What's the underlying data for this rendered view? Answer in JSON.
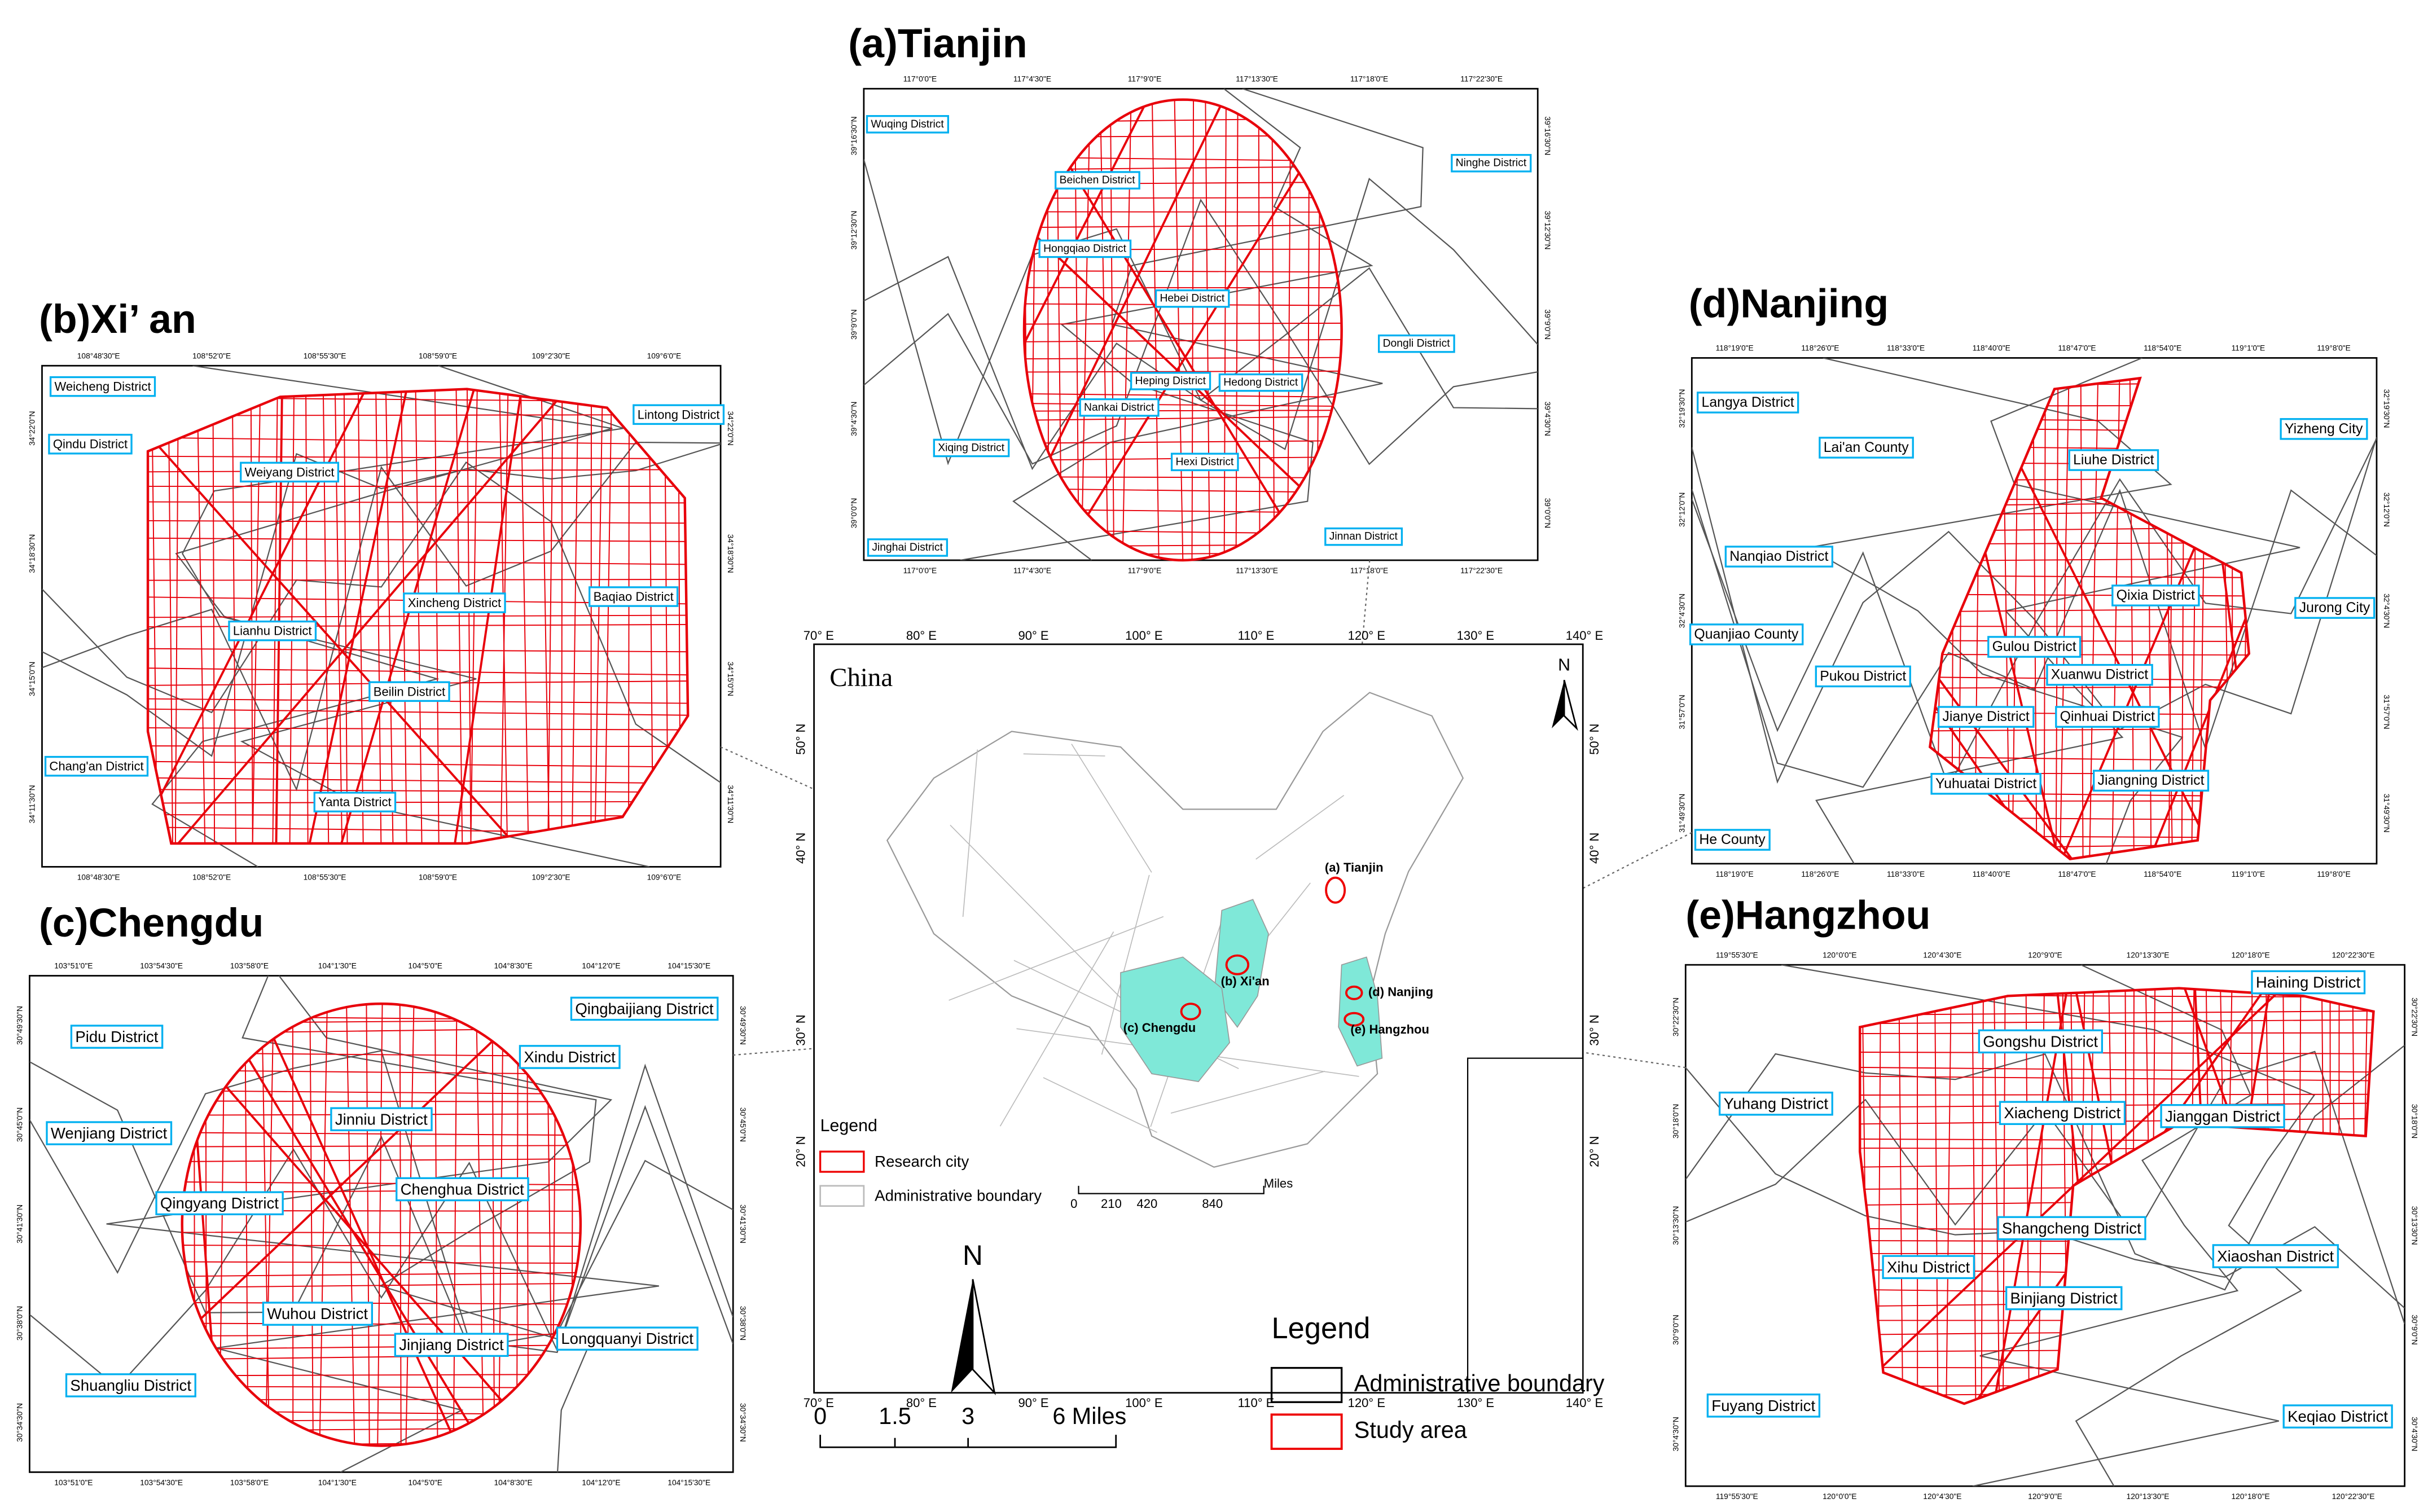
{
  "panels": [
    {
      "title": "(a)Tianjin",
      "longitude_labels": [
        "117°0'0\"E",
        "117°4'30\"E",
        "117°9'0\"E",
        "117°13'30\"E",
        "117°18'0\"E",
        "117°22'30\"E"
      ],
      "latitude_labels": [
        "39°16'30\"N",
        "39°12'30\"N",
        "39°9'0\"N",
        "39°4'30\"N",
        "39°0'0\"N"
      ],
      "districts": [
        "Wuqing District",
        "Ninghe District",
        "Beichen District",
        "Hongqiao District",
        "Hebei District",
        "Dongli District",
        "Heping District",
        "Hedong District",
        "Nankai District",
        "Xiqing District",
        "Hexi District",
        "Jinghai District",
        "Jinnan District"
      ]
    },
    {
      "title": "(b)Xi’ an",
      "longitude_labels": [
        "108°48'30\"E",
        "108°52'0\"E",
        "108°55'30\"E",
        "108°59'0\"E",
        "109°2'30\"E",
        "109°6'0\"E"
      ],
      "latitude_labels": [
        "34°22'0\"N",
        "34°18'30\"N",
        "34°15'0\"N",
        "34°11'30\"N"
      ],
      "districts": [
        "Weicheng District",
        "Lintong District",
        "Qindu District",
        "Weiyang District",
        "Xincheng District",
        "Baqiao District",
        "Lianhu District",
        "Beilin District",
        "Chang'an District",
        "Yanta District"
      ]
    },
    {
      "title": "(c)Chengdu",
      "longitude_labels": [
        "103°51'0\"E",
        "103°54'30\"E",
        "103°58'0\"E",
        "104°1'30\"E",
        "104°5'0\"E",
        "104°8'30\"E",
        "104°12'0\"E",
        "104°15'30\"E"
      ],
      "latitude_labels": [
        "30°49'30\"N",
        "30°45'0\"N",
        "30°41'30\"N",
        "30°38'0\"N",
        "30°34'30\"N"
      ],
      "districts": [
        "Pidu District",
        "Qingbaijiang District",
        "Xindu District",
        "Wenjiang District",
        "Jinniu District",
        "Qingyang District",
        "Chenghua District",
        "Wuhou District",
        "Jinjiang District",
        "Longquanyi District",
        "Shuangliu District"
      ]
    },
    {
      "title": "(d)Nanjing",
      "longitude_labels": [
        "118°19'0\"E",
        "118°26'0\"E",
        "118°33'0\"E",
        "118°40'0\"E",
        "118°47'0\"E",
        "118°54'0\"E",
        "119°1'0\"E",
        "119°8'0\"E"
      ],
      "latitude_labels": [
        "32°19'30\"N",
        "32°12'0\"N",
        "32°4'30\"N",
        "31°57'0\"N",
        "31°49'30\"N"
      ],
      "districts": [
        "Langya District",
        "Lai'an County",
        "Yizheng City",
        "Liuhe District",
        "Nanqiao District",
        "Qixia District",
        "Jurong City",
        "Quanjiao County",
        "Gulou District",
        "Pukou District",
        "Xuanwu District",
        "Jianye District",
        "Qinhuai District",
        "Yuhuatai District",
        "Jiangning District",
        "He County"
      ]
    },
    {
      "title": "(e)Hangzhou",
      "longitude_labels": [
        "119°55'30\"E",
        "120°0'0\"E",
        "120°4'30\"E",
        "120°9'0\"E",
        "120°13'30\"E",
        "120°18'0\"E",
        "120°22'30\"E"
      ],
      "latitude_labels": [
        "30°22'30\"N",
        "30°18'0\"N",
        "30°13'30\"N",
        "30°9'0\"N",
        "30°4'30\"N"
      ],
      "districts": [
        "Haining District",
        "Gongshu District",
        "Yuhang District",
        "Xiacheng District",
        "Jianggan District",
        "Shangcheng District",
        "Xihu District",
        "Xiaoshan District",
        "Binjiang District",
        "Fuyang District",
        "Keqiao District"
      ]
    }
  ],
  "overview": {
    "title": "China",
    "north": "N",
    "cities": [
      "(a) Tianjin",
      "(b) Xi'an",
      "(c) Chengdu",
      "(d) Nanjing",
      "(e) Hangzhou"
    ],
    "longitude_labels": [
      "70° E",
      "80° E",
      "90° E",
      "100° E",
      "110° E",
      "120° E",
      "130° E",
      "140° E"
    ],
    "latitude_labels": [
      "50° N",
      "40° N",
      "30° N",
      "20° N"
    ],
    "legend": {
      "title": "Legend",
      "items": [
        "Research city",
        "Administrative boundary"
      ]
    },
    "scale_labels": [
      "0",
      "210",
      "420",
      "840"
    ],
    "scale_unit": "Miles"
  },
  "legend": {
    "north": "N",
    "scale_labels": [
      "0",
      "1.5",
      "3",
      "6 Miles"
    ],
    "title": "Legend",
    "items": [
      "Administrative boundary",
      "Study area"
    ]
  }
}
